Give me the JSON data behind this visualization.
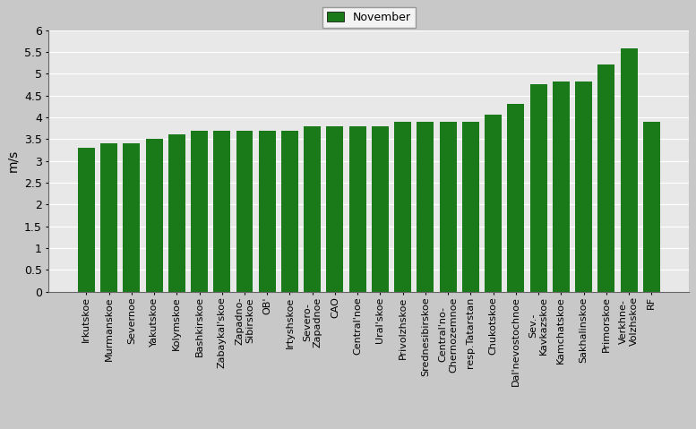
{
  "categories": [
    "Irkutskoe",
    "Murmanskoe",
    "Severnoe",
    "Yakutskoe",
    "Kolymskoe",
    "Bashkirskoe",
    "Zabaykal'skoe",
    "Zapadno-\nSibirskoe",
    "OB'",
    "Irtyshskoe",
    "Severo-\nZapadnoe",
    "CAO",
    "Central'noe",
    "Ural'skoe",
    "Privolzhskoe",
    "Srednesibirskoe",
    "Central'no-\nChernozemnoe",
    "resp.Tatarstan",
    "Chukotskoe",
    "Dal'nevostochnoe",
    "Sev.-\nKavkazskoe",
    "Kamchatskoe",
    "Sakhalinskoe",
    "Primorskoe",
    "Verkhne-\nVolzhskoe",
    "RF"
  ],
  "values": [
    3.3,
    3.4,
    3.4,
    3.5,
    3.6,
    3.7,
    3.7,
    3.7,
    3.7,
    3.7,
    3.8,
    3.8,
    3.8,
    3.8,
    3.9,
    3.9,
    3.9,
    3.9,
    4.05,
    4.3,
    4.75,
    4.83,
    4.83,
    5.2,
    5.57,
    3.9
  ],
  "bar_color": "#1a7a1a",
  "ylabel": "m/s",
  "ylim": [
    0,
    6
  ],
  "yticks": [
    0,
    0.5,
    1.0,
    1.5,
    2.0,
    2.5,
    3.0,
    3.5,
    4.0,
    4.5,
    5.0,
    5.5,
    6.0
  ],
  "ytick_labels": [
    "0",
    "0.5",
    "1",
    "1.5",
    "2",
    "2.5",
    "3",
    "3.5",
    "4",
    "4.5",
    "5",
    "5.5",
    "6"
  ],
  "legend_label": "November",
  "legend_color": "#1a7a1a",
  "plot_bg_color": "#e8e8e8",
  "fig_bg_color": "#c8c8c8",
  "grid_color": "#ffffff",
  "tick_fontsize": 9,
  "label_fontsize": 8
}
